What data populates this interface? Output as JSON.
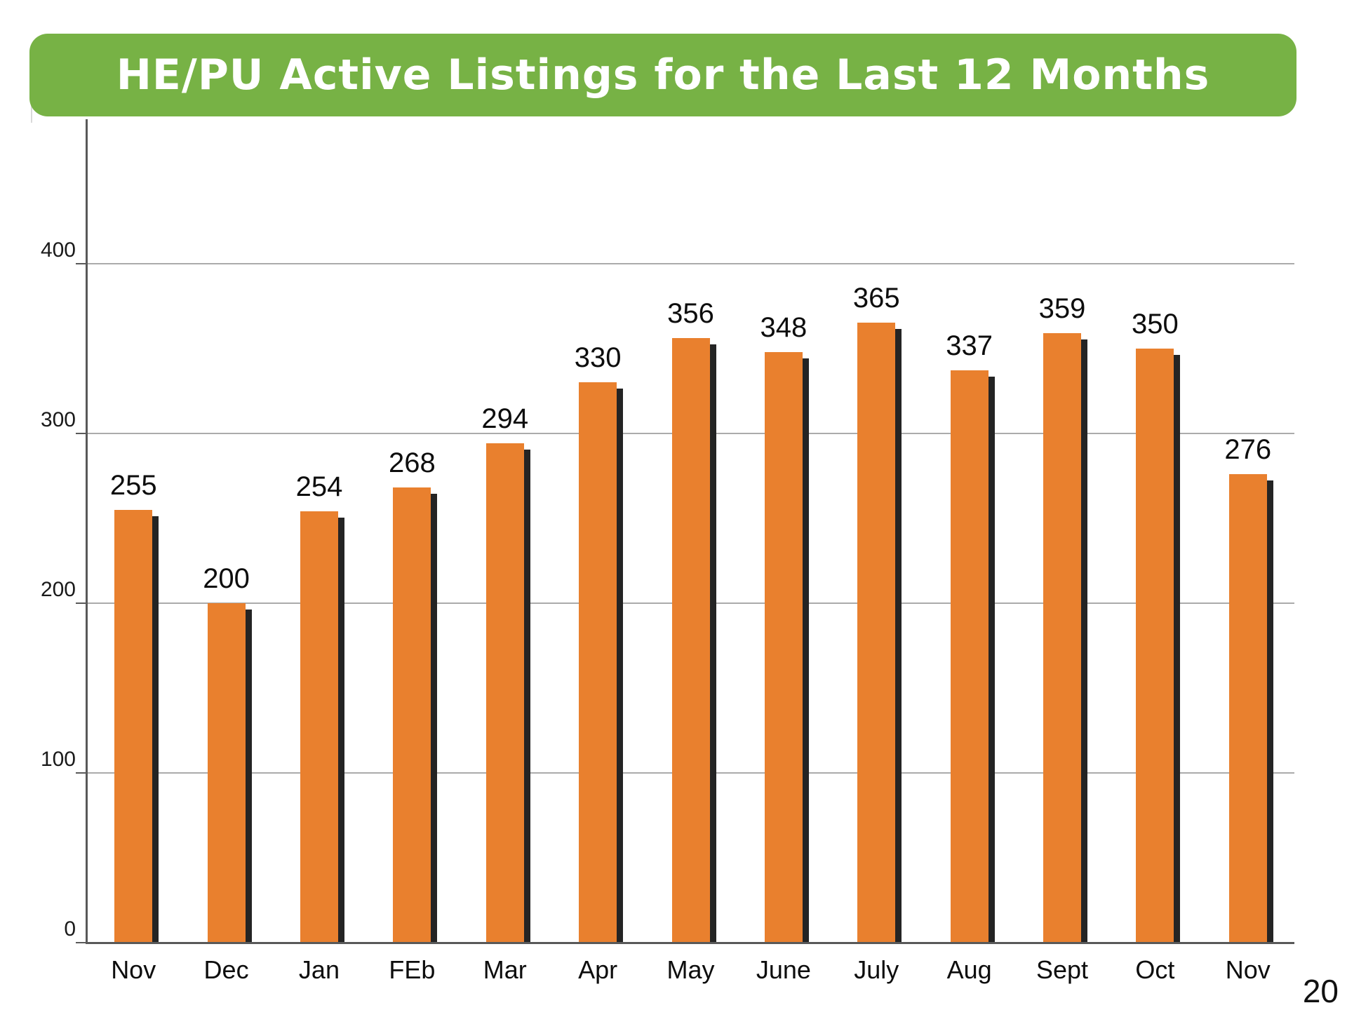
{
  "page": {
    "number": "20"
  },
  "chart_data": {
    "type": "bar",
    "title": "HE/PU Active Listings for the Last 12 Months",
    "categories": [
      "Nov",
      "Dec",
      "Jan",
      "FEb",
      "Mar",
      "Apr",
      "May",
      "June",
      "July",
      "Aug",
      "Sept",
      "Oct",
      "Nov"
    ],
    "values": [
      255,
      200,
      254,
      268,
      294,
      330,
      356,
      348,
      365,
      337,
      359,
      350,
      276
    ],
    "xlabel": "",
    "ylabel": "",
    "ylim": [
      0,
      485
    ],
    "yticks": [
      0,
      100,
      200,
      300,
      400
    ],
    "grid": true,
    "legend_position": "none",
    "colors": {
      "bar": "#E9802E",
      "bar_shadow": "#242424",
      "banner": "#77B245",
      "title_text": "#FFFFFF",
      "gridline": "#ABABAB",
      "axis": "#595959",
      "label_text": "#0D0D0D"
    }
  }
}
